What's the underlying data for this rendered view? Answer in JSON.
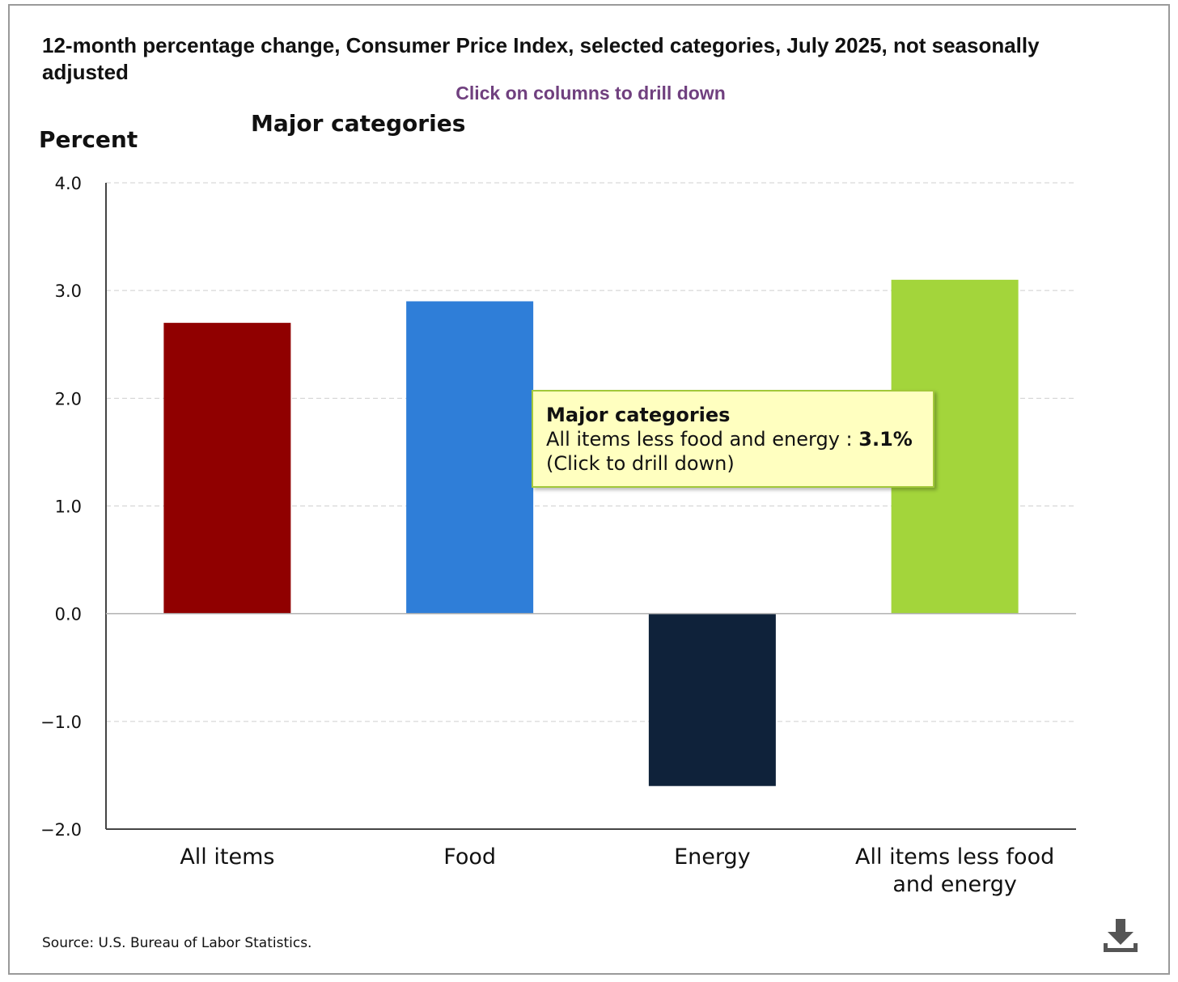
{
  "title": "12-month percentage change, Consumer Price Index, selected categories, July 2025, not seasonally adjusted",
  "hint": "Click on columns to drill down",
  "source": "Source: U.S. Bureau of Labor Statistics.",
  "tooltip": {
    "heading": "Major categories",
    "label": "All items less food and energy",
    "separator": " : ",
    "value": "3.1%",
    "action": "(Click to drill down)"
  },
  "icons": {
    "download": "download-icon"
  },
  "chart_data": {
    "type": "bar",
    "title": "Major categories",
    "ylabel": "Percent",
    "xlabel": "",
    "ylim": [
      -2.0,
      4.0
    ],
    "yticks": [
      4.0,
      3.0,
      2.0,
      1.0,
      0.0,
      -1.0,
      -2.0
    ],
    "ytick_labels": [
      "4.0",
      "3.0",
      "2.0",
      "1.0",
      "0.0",
      "−1.0",
      "−2.0"
    ],
    "grid": true,
    "categories": [
      [
        "All items"
      ],
      [
        "Food"
      ],
      [
        "Energy"
      ],
      [
        "All items less food",
        "and energy"
      ]
    ],
    "values": [
      2.7,
      2.9,
      -1.6,
      3.1
    ],
    "colors": [
      "#900000",
      "#2f7ed8",
      "#0f223a",
      "#a3d53b"
    ]
  }
}
